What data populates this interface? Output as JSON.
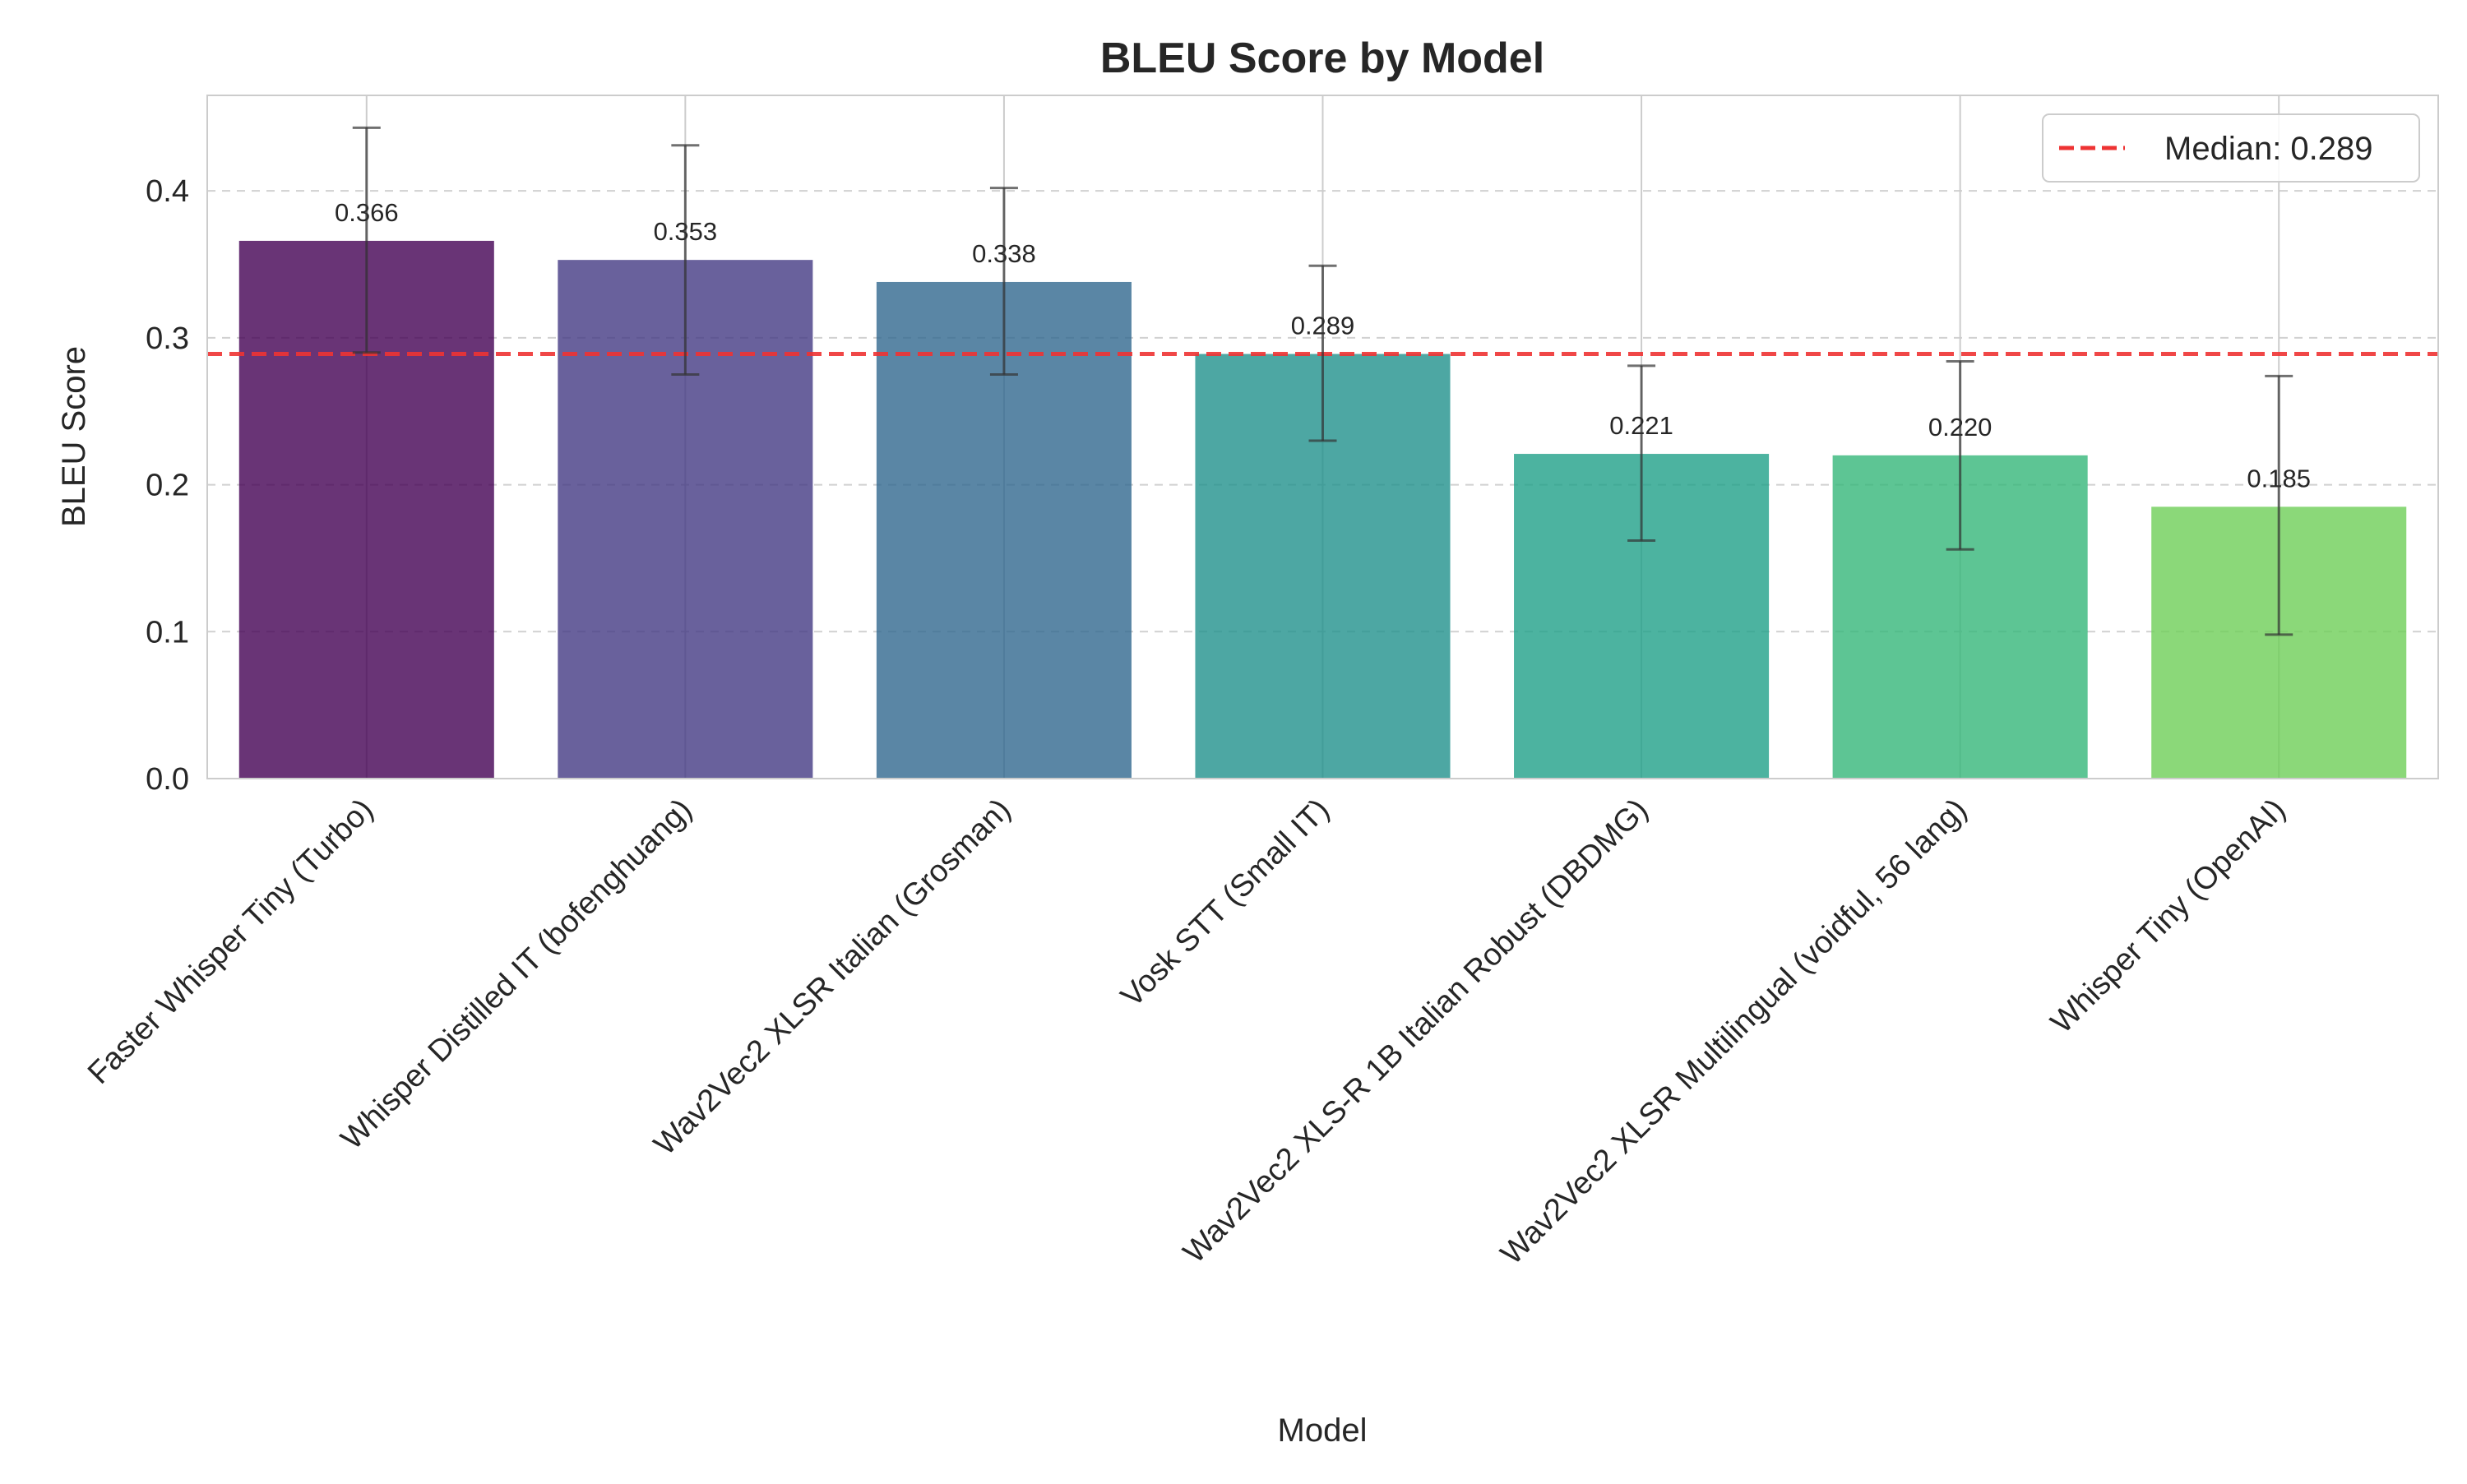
{
  "chart_data": {
    "type": "bar",
    "title": "BLEU Score by Model",
    "xlabel": "Model",
    "ylabel": "BLEU Score",
    "ylim": [
      0,
      0.465
    ],
    "yticks": [
      "0.0",
      "0.1",
      "0.2",
      "0.3",
      "0.4"
    ],
    "ytick_values": [
      0.0,
      0.1,
      0.2,
      0.3,
      0.4
    ],
    "grid": true,
    "legend_position": "top-right",
    "categories": [
      "Faster Whisper Tiny (Turbo)",
      "Whisper Distilled IT (bofenghuang)",
      "Wav2Vec2 XLSR Italian (Grosman)",
      "Vosk STT (Small IT)",
      "Wav2Vec2 XLS-R 1B Italian Robust (DBDMG)",
      "Wav2Vec2 XLSR Multilingual (voidful, 56 lang)",
      "Whisper Tiny (OpenAI)"
    ],
    "values": [
      0.366,
      0.353,
      0.338,
      0.289,
      0.221,
      0.22,
      0.185
    ],
    "value_labels": [
      "0.366",
      "0.353",
      "0.338",
      "0.289",
      "0.221",
      "0.220",
      "0.185"
    ],
    "error_low": [
      0.29,
      0.275,
      0.275,
      0.23,
      0.162,
      0.156,
      0.098
    ],
    "error_high": [
      0.443,
      0.431,
      0.402,
      0.349,
      0.281,
      0.284,
      0.274
    ],
    "bar_colors": [
      "#440154",
      "#443983",
      "#31688e",
      "#21918c",
      "#1fa088",
      "#35b779",
      "#6ece58"
    ],
    "bar_opacity": 0.8,
    "median": {
      "value": 0.289,
      "label": "Median: 0.289",
      "color": "#ee3333"
    }
  }
}
